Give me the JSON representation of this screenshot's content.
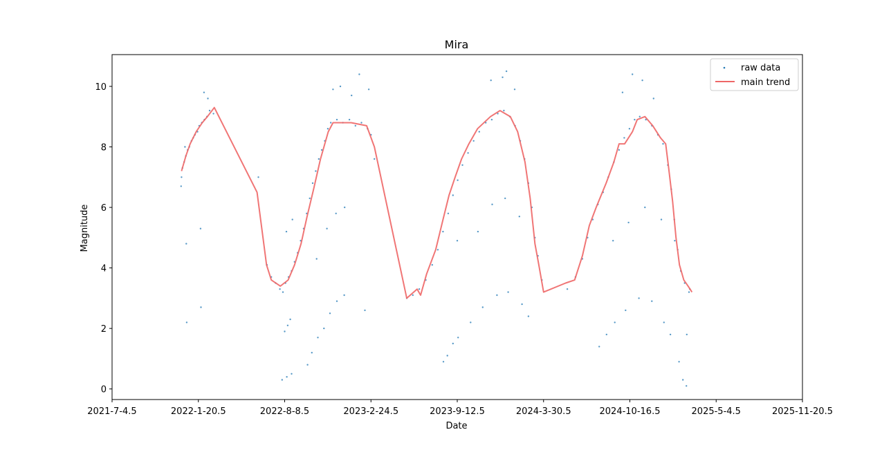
{
  "chart_data": {
    "type": "scatter",
    "title": "Mira",
    "xlabel": "Date",
    "ylabel": "Magnitude",
    "xlim": [
      "2021-07-04",
      "2025-11-20"
    ],
    "ylim": [
      -0.35,
      11.05
    ],
    "x_ticks": [
      "2021-7-4.5",
      "2022-1-20.5",
      "2022-8-8.5",
      "2023-2-24.5",
      "2023-9-12.5",
      "2024-3-30.5",
      "2024-10-16.5",
      "2025-5-4.5",
      "2025-11-20.5"
    ],
    "y_ticks": [
      "0",
      "2",
      "4",
      "6",
      "8",
      "10"
    ],
    "legend_position": "top-right",
    "colors": {
      "raw": "#1f77b4",
      "trend": "#ee6666"
    },
    "series": [
      {
        "name": "raw data",
        "kind": "scatter",
        "points": [
          [
            "2021-12-12",
            7.0
          ],
          [
            "2021-12-14",
            7.3
          ],
          [
            "2021-12-18",
            7.5
          ],
          [
            "2021-12-22",
            7.7
          ],
          [
            "2021-12-26",
            7.9
          ],
          [
            "2021-12-30",
            8.0
          ],
          [
            "2022-01-04",
            8.2
          ],
          [
            "2022-01-08",
            8.3
          ],
          [
            "2022-01-12",
            8.4
          ],
          [
            "2022-01-18",
            8.5
          ],
          [
            "2022-01-22",
            8.7
          ],
          [
            "2022-01-28",
            8.8
          ],
          [
            "2022-02-03",
            8.9
          ],
          [
            "2022-02-09",
            9.0
          ],
          [
            "2022-02-15",
            9.2
          ],
          [
            "2021-12-11",
            6.7
          ],
          [
            "2021-12-20",
            8.0
          ],
          [
            "2021-12-24",
            2.2
          ],
          [
            "2021-12-23",
            4.8
          ],
          [
            "2022-01-25",
            5.3
          ],
          [
            "2022-01-26",
            2.7
          ],
          [
            "2022-02-02",
            9.8
          ],
          [
            "2022-02-11",
            9.6
          ],
          [
            "2022-02-24",
            9.1
          ],
          [
            "2022-06-08",
            7.0
          ],
          [
            "2022-06-28",
            4.1
          ],
          [
            "2022-07-08",
            3.7
          ],
          [
            "2022-07-18",
            3.5
          ],
          [
            "2022-07-28",
            3.3
          ],
          [
            "2022-08-04",
            3.2
          ],
          [
            "2022-08-10",
            3.5
          ],
          [
            "2022-08-17",
            3.7
          ],
          [
            "2022-08-24",
            3.9
          ],
          [
            "2022-08-31",
            4.2
          ],
          [
            "2022-09-07",
            4.5
          ],
          [
            "2022-09-14",
            4.9
          ],
          [
            "2022-09-21",
            5.3
          ],
          [
            "2022-09-28",
            5.8
          ],
          [
            "2022-10-05",
            6.3
          ],
          [
            "2022-10-12",
            6.8
          ],
          [
            "2022-10-19",
            7.2
          ],
          [
            "2022-10-26",
            7.6
          ],
          [
            "2022-11-02",
            7.9
          ],
          [
            "2022-11-09",
            8.2
          ],
          [
            "2022-11-16",
            8.6
          ],
          [
            "2022-11-23",
            8.8
          ],
          [
            "2022-12-07",
            8.9
          ],
          [
            "2022-12-21",
            8.8
          ],
          [
            "2023-01-05",
            8.9
          ],
          [
            "2023-01-19",
            8.7
          ],
          [
            "2023-02-02",
            8.8
          ],
          [
            "2023-02-16",
            8.6
          ],
          [
            "2022-08-08",
            1.9
          ],
          [
            "2022-08-15",
            2.1
          ],
          [
            "2022-08-21",
            2.3
          ],
          [
            "2022-08-12",
            5.2
          ],
          [
            "2022-08-26",
            5.6
          ],
          [
            "2022-08-02",
            0.3
          ],
          [
            "2022-08-13",
            0.4
          ],
          [
            "2022-08-24",
            0.5
          ],
          [
            "2022-09-30",
            0.8
          ],
          [
            "2022-10-10",
            1.2
          ],
          [
            "2022-10-24",
            1.7
          ],
          [
            "2022-11-07",
            2.0
          ],
          [
            "2022-11-21",
            2.5
          ],
          [
            "2022-12-07",
            2.9
          ],
          [
            "2022-12-24",
            3.1
          ],
          [
            "2022-10-21",
            4.3
          ],
          [
            "2022-11-14",
            5.3
          ],
          [
            "2022-12-05",
            5.8
          ],
          [
            "2022-12-25",
            6.0
          ],
          [
            "2022-11-28",
            9.9
          ],
          [
            "2022-12-15",
            10.0
          ],
          [
            "2023-01-10",
            9.7
          ],
          [
            "2023-01-28",
            10.4
          ],
          [
            "2023-02-19",
            9.9
          ],
          [
            "2023-02-10",
            2.6
          ],
          [
            "2023-02-24",
            8.4
          ],
          [
            "2023-03-04",
            7.6
          ],
          [
            "2023-05-18",
            3.0
          ],
          [
            "2023-06-01",
            3.1
          ],
          [
            "2023-06-16",
            3.3
          ],
          [
            "2023-07-01",
            3.6
          ],
          [
            "2023-07-16",
            4.1
          ],
          [
            "2023-07-29",
            4.6
          ],
          [
            "2023-08-10",
            5.2
          ],
          [
            "2023-08-22",
            5.8
          ],
          [
            "2023-09-02",
            6.4
          ],
          [
            "2023-09-13",
            6.9
          ],
          [
            "2023-09-24",
            7.4
          ],
          [
            "2023-10-07",
            7.8
          ],
          [
            "2023-10-20",
            8.2
          ],
          [
            "2023-11-02",
            8.5
          ],
          [
            "2023-11-17",
            8.8
          ],
          [
            "2023-12-01",
            8.9
          ],
          [
            "2023-12-15",
            9.1
          ],
          [
            "2023-12-29",
            9.2
          ],
          [
            "2024-01-12",
            9.0
          ],
          [
            "2024-01-24",
            8.7
          ],
          [
            "2024-02-05",
            8.2
          ],
          [
            "2024-02-15",
            7.6
          ],
          [
            "2024-02-24",
            6.8
          ],
          [
            "2024-03-03",
            6.0
          ],
          [
            "2024-03-10",
            5.0
          ],
          [
            "2024-03-17",
            4.4
          ],
          [
            "2024-03-26",
            3.6
          ],
          [
            "2023-08-11",
            0.9
          ],
          [
            "2023-08-20",
            1.1
          ],
          [
            "2023-09-02",
            1.5
          ],
          [
            "2023-09-14",
            1.7
          ],
          [
            "2023-10-13",
            2.2
          ],
          [
            "2023-11-10",
            2.7
          ],
          [
            "2023-12-13",
            3.1
          ],
          [
            "2024-01-08",
            3.2
          ],
          [
            "2024-02-09",
            2.8
          ],
          [
            "2024-02-24",
            2.4
          ],
          [
            "2023-09-12",
            4.9
          ],
          [
            "2023-10-30",
            5.2
          ],
          [
            "2023-12-02",
            6.1
          ],
          [
            "2024-01-01",
            6.3
          ],
          [
            "2024-02-03",
            5.7
          ],
          [
            "2023-11-29",
            10.2
          ],
          [
            "2023-12-26",
            10.3
          ],
          [
            "2024-01-04",
            10.5
          ],
          [
            "2024-01-23",
            9.9
          ],
          [
            "2024-05-24",
            3.3
          ],
          [
            "2024-06-12",
            3.7
          ],
          [
            "2024-06-28",
            4.3
          ],
          [
            "2024-07-10",
            5.0
          ],
          [
            "2024-07-22",
            5.6
          ],
          [
            "2024-08-03",
            6.1
          ],
          [
            "2024-08-15",
            6.5
          ],
          [
            "2024-08-27",
            7.0
          ],
          [
            "2024-09-09",
            7.5
          ],
          [
            "2024-09-21",
            7.9
          ],
          [
            "2024-10-03",
            8.3
          ],
          [
            "2024-10-15",
            8.6
          ],
          [
            "2024-10-27",
            8.9
          ],
          [
            "2024-11-08",
            9.0
          ],
          [
            "2024-11-22",
            8.9
          ],
          [
            "2024-12-06",
            8.7
          ],
          [
            "2024-12-20",
            8.4
          ],
          [
            "2025-01-01",
            8.1
          ],
          [
            "2025-01-12",
            7.4
          ],
          [
            "2025-01-20",
            6.6
          ],
          [
            "2025-01-27",
            5.6
          ],
          [
            "2025-02-04",
            4.6
          ],
          [
            "2025-02-11",
            3.9
          ],
          [
            "2025-02-20",
            3.5
          ],
          [
            "2025-03-04",
            3.3
          ],
          [
            "2024-08-06",
            1.4
          ],
          [
            "2024-08-23",
            1.8
          ],
          [
            "2024-09-11",
            2.2
          ],
          [
            "2024-10-06",
            2.6
          ],
          [
            "2024-11-06",
            3.0
          ],
          [
            "2024-12-06",
            2.9
          ],
          [
            "2025-01-03",
            2.2
          ],
          [
            "2025-01-18",
            1.8
          ],
          [
            "2025-02-07",
            0.9
          ],
          [
            "2025-02-16",
            0.3
          ],
          [
            "2025-02-24",
            0.1
          ],
          [
            "2024-09-07",
            4.9
          ],
          [
            "2024-10-13",
            5.5
          ],
          [
            "2024-11-20",
            6.0
          ],
          [
            "2024-12-28",
            5.6
          ],
          [
            "2025-01-28",
            4.9
          ],
          [
            "2024-09-29",
            9.8
          ],
          [
            "2024-10-22",
            10.4
          ],
          [
            "2024-11-14",
            10.2
          ],
          [
            "2024-12-10",
            9.6
          ],
          [
            "2025-02-25",
            1.8
          ],
          [
            "2025-03-02",
            3.2
          ]
        ]
      },
      {
        "name": "main trend",
        "kind": "line",
        "points": [
          [
            "2021-12-12",
            7.2
          ],
          [
            "2021-12-22",
            7.7
          ],
          [
            "2022-01-01",
            8.1
          ],
          [
            "2022-01-15",
            8.5
          ],
          [
            "2022-01-29",
            8.8
          ],
          [
            "2022-02-10",
            9.0
          ],
          [
            "2022-02-26",
            9.3
          ],
          [
            "2022-06-05",
            6.5
          ],
          [
            "2022-06-27",
            4.1
          ],
          [
            "2022-07-08",
            3.6
          ],
          [
            "2022-07-29",
            3.4
          ],
          [
            "2022-08-16",
            3.6
          ],
          [
            "2022-08-31",
            4.1
          ],
          [
            "2022-09-15",
            4.8
          ],
          [
            "2022-09-29",
            5.7
          ],
          [
            "2022-10-14",
            6.6
          ],
          [
            "2022-10-30",
            7.6
          ],
          [
            "2022-11-17",
            8.5
          ],
          [
            "2022-11-28",
            8.8
          ],
          [
            "2023-01-09",
            8.8
          ],
          [
            "2023-02-14",
            8.7
          ],
          [
            "2023-03-04",
            8.0
          ],
          [
            "2023-05-18",
            3.0
          ],
          [
            "2023-06-11",
            3.3
          ],
          [
            "2023-06-19",
            3.1
          ],
          [
            "2023-07-03",
            3.8
          ],
          [
            "2023-07-24",
            4.6
          ],
          [
            "2023-08-10",
            5.6
          ],
          [
            "2023-08-24",
            6.4
          ],
          [
            "2023-09-07",
            7.0
          ],
          [
            "2023-09-22",
            7.6
          ],
          [
            "2023-10-09",
            8.1
          ],
          [
            "2023-10-29",
            8.6
          ],
          [
            "2023-11-28",
            9.0
          ],
          [
            "2023-12-20",
            9.2
          ],
          [
            "2024-01-13",
            9.0
          ],
          [
            "2024-01-30",
            8.5
          ],
          [
            "2024-02-16",
            7.5
          ],
          [
            "2024-02-28",
            6.3
          ],
          [
            "2024-03-10",
            4.8
          ],
          [
            "2024-03-19",
            4.1
          ],
          [
            "2024-03-30",
            3.2
          ],
          [
            "2024-05-20",
            3.5
          ],
          [
            "2024-06-10",
            3.6
          ],
          [
            "2024-06-28",
            4.4
          ],
          [
            "2024-07-14",
            5.4
          ],
          [
            "2024-07-30",
            6.0
          ],
          [
            "2024-08-22",
            6.8
          ],
          [
            "2024-09-09",
            7.5
          ],
          [
            "2024-09-21",
            8.1
          ],
          [
            "2024-10-04",
            8.1
          ],
          [
            "2024-10-22",
            8.5
          ],
          [
            "2024-11-02",
            8.9
          ],
          [
            "2024-11-20",
            9.0
          ],
          [
            "2024-12-08",
            8.7
          ],
          [
            "2024-12-26",
            8.3
          ],
          [
            "2025-01-07",
            8.1
          ],
          [
            "2025-01-14",
            7.3
          ],
          [
            "2025-01-23",
            6.2
          ],
          [
            "2025-01-31",
            5.0
          ],
          [
            "2025-02-08",
            4.1
          ],
          [
            "2025-02-18",
            3.6
          ],
          [
            "2025-02-28",
            3.4
          ],
          [
            "2025-03-09",
            3.2
          ]
        ]
      }
    ]
  }
}
